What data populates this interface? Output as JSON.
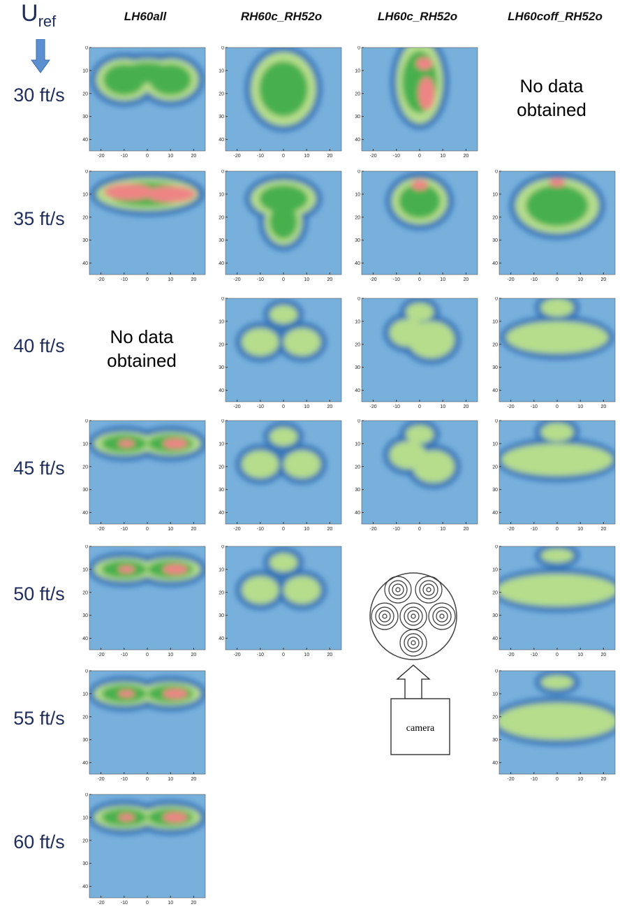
{
  "header": {
    "u_symbol": "U",
    "u_subscript": "ref"
  },
  "columns": [
    "LH60all",
    "RH60c_RH52o",
    "LH60c_RH52o",
    "LH60coff_RH52o"
  ],
  "rows": [
    "30 ft/s",
    "35 ft/s",
    "40 ft/s",
    "45 ft/s",
    "50 ft/s",
    "55 ft/s",
    "60 ft/s"
  ],
  "no_data": [
    "No data",
    "obtained"
  ],
  "panel_axes": {
    "xticks": [
      -20,
      -10,
      0,
      10,
      20
    ],
    "yticks": [
      0,
      10,
      20,
      30,
      40
    ]
  },
  "camera_label": "camera"
}
